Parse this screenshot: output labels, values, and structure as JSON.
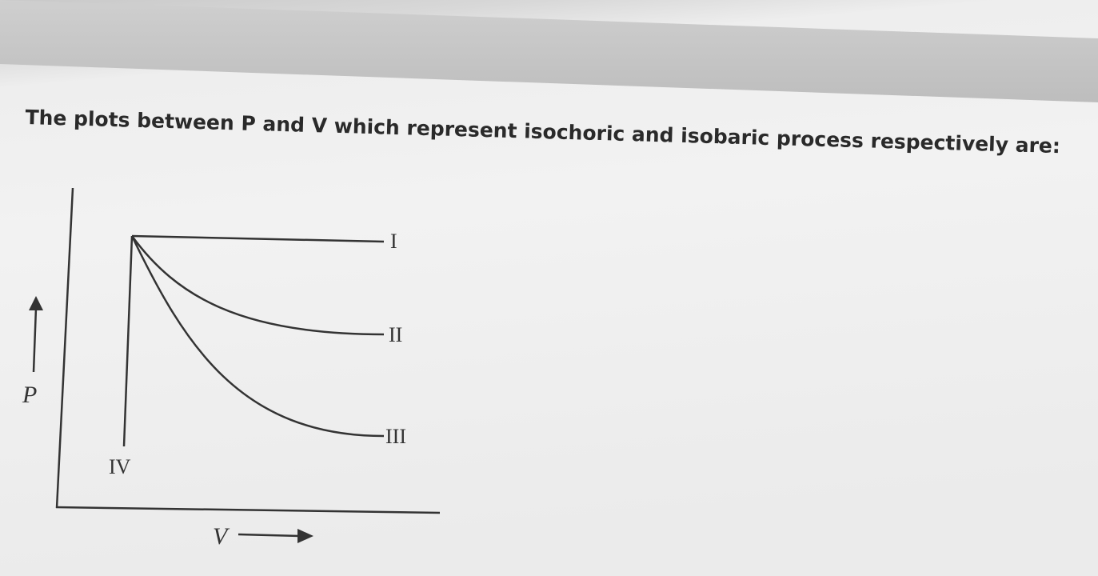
{
  "question": "The plots between P and V which represent isochoric and isobaric process respectively are:",
  "diagram": {
    "y_axis_label": "P",
    "x_axis_label": "V",
    "curves": [
      {
        "label": "I"
      },
      {
        "label": "II"
      },
      {
        "label": "III"
      },
      {
        "label": "IV"
      }
    ]
  }
}
